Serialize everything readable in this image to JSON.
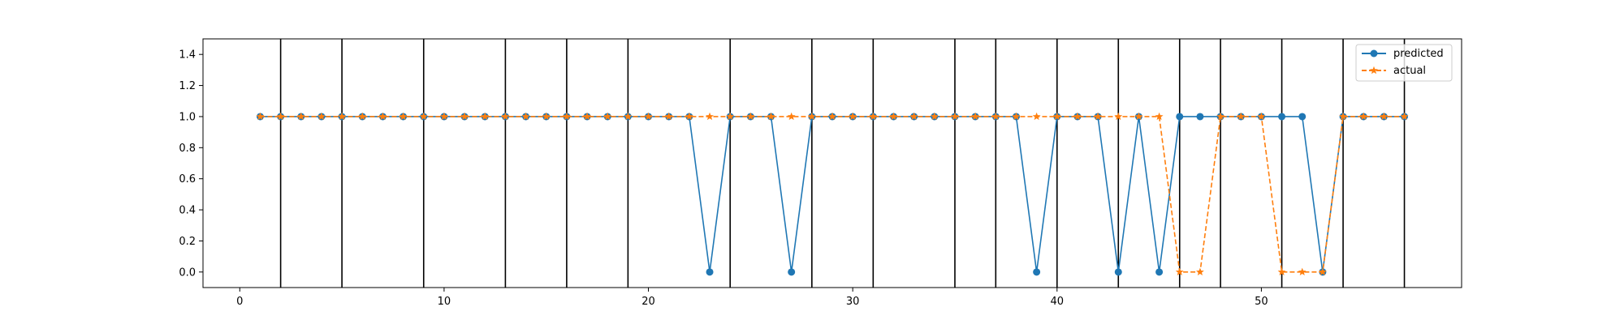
{
  "chart_data": {
    "type": "line",
    "title": "",
    "xlabel": "",
    "ylabel": "",
    "xlim": [
      -1.8,
      59.8
    ],
    "ylim": [
      -0.1,
      1.5
    ],
    "xticks": [
      0,
      10,
      20,
      30,
      40,
      50
    ],
    "yticks": [
      0.0,
      0.2,
      0.4,
      0.6,
      0.8,
      1.0,
      1.2,
      1.4
    ],
    "ytick_labels": [
      "0.0",
      "0.2",
      "0.4",
      "0.6",
      "0.8",
      "1.0",
      "1.2",
      "1.4"
    ],
    "grid": false,
    "legend_position": "top-right",
    "x": [
      1,
      2,
      3,
      4,
      5,
      6,
      7,
      8,
      9,
      10,
      11,
      12,
      13,
      14,
      15,
      16,
      17,
      18,
      19,
      20,
      21,
      22,
      23,
      24,
      25,
      26,
      27,
      28,
      29,
      30,
      31,
      32,
      33,
      34,
      35,
      36,
      37,
      38,
      39,
      40,
      41,
      42,
      43,
      44,
      45,
      46,
      47,
      48,
      49,
      50,
      51,
      52,
      53,
      54,
      55,
      56,
      57
    ],
    "series": [
      {
        "name": "predicted",
        "color": "#1f77b4",
        "marker": "circle",
        "linestyle": "solid",
        "values": [
          1,
          1,
          1,
          1,
          1,
          1,
          1,
          1,
          1,
          1,
          1,
          1,
          1,
          1,
          1,
          1,
          1,
          1,
          1,
          1,
          1,
          1,
          0,
          1,
          1,
          1,
          0,
          1,
          1,
          1,
          1,
          1,
          1,
          1,
          1,
          1,
          1,
          1,
          0,
          1,
          1,
          1,
          0,
          1,
          0,
          1,
          1,
          1,
          1,
          1,
          1,
          1,
          0,
          1,
          1,
          1,
          1
        ]
      },
      {
        "name": "actual",
        "color": "#ff7f0e",
        "marker": "star",
        "linestyle": "dashed",
        "values": [
          1,
          1,
          1,
          1,
          1,
          1,
          1,
          1,
          1,
          1,
          1,
          1,
          1,
          1,
          1,
          1,
          1,
          1,
          1,
          1,
          1,
          1,
          1,
          1,
          1,
          1,
          1,
          1,
          1,
          1,
          1,
          1,
          1,
          1,
          1,
          1,
          1,
          1,
          1,
          1,
          1,
          1,
          1,
          1,
          1,
          0,
          0,
          1,
          1,
          1,
          0,
          0,
          0,
          1,
          1,
          1,
          1
        ]
      }
    ],
    "vertical_lines": [
      2,
      5,
      9,
      13,
      16,
      19,
      24,
      28,
      31,
      35,
      37,
      40,
      43,
      46,
      48,
      51,
      54,
      57
    ]
  }
}
